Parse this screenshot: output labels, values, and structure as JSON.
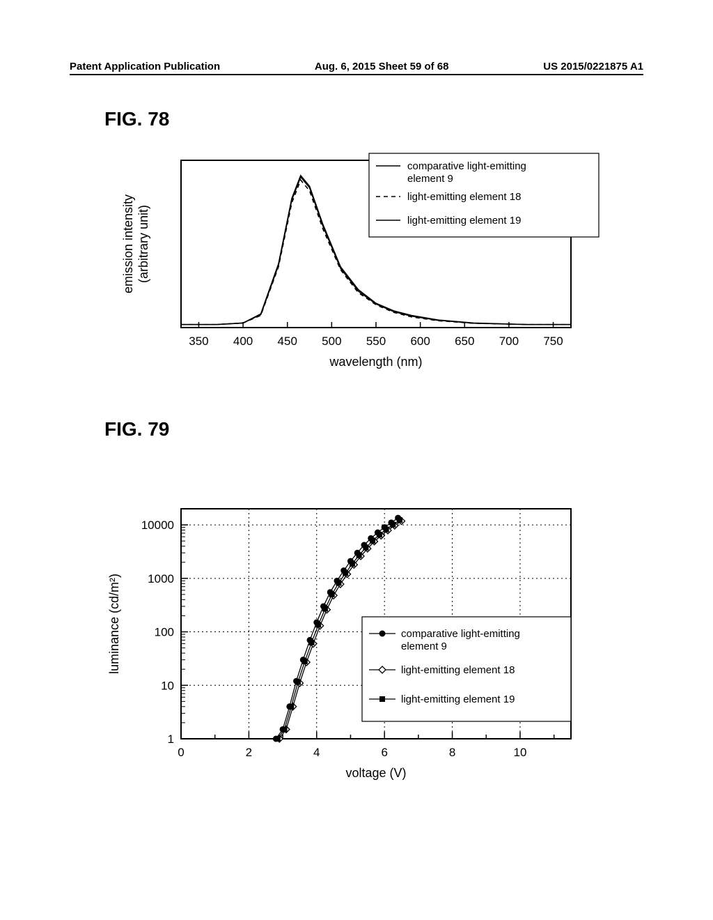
{
  "header": {
    "left": "Patent Application Publication",
    "center": "Aug. 6, 2015   Sheet 59 of 68",
    "right": "US 2015/0221875 A1"
  },
  "fig78": {
    "label": "FIG. 78",
    "type": "line",
    "xlabel": "wavelength (nm)",
    "ylabel_line1": "emission intensity",
    "ylabel_line2": "(arbitrary unit)",
    "xlim": [
      330,
      770
    ],
    "xticks": [
      350,
      400,
      450,
      500,
      550,
      600,
      650,
      700,
      750
    ],
    "ylim": [
      0,
      1.1
    ],
    "background_color": "#ffffff",
    "axis_color": "#000000",
    "legend_border_color": "#000000",
    "series": [
      {
        "name": "comparative light-emitting element  9",
        "color": "#000000",
        "dash": "solid",
        "data": [
          [
            330,
            0.02
          ],
          [
            370,
            0.02
          ],
          [
            400,
            0.03
          ],
          [
            420,
            0.09
          ],
          [
            440,
            0.42
          ],
          [
            455,
            0.85
          ],
          [
            465,
            1.0
          ],
          [
            475,
            0.93
          ],
          [
            490,
            0.68
          ],
          [
            510,
            0.4
          ],
          [
            530,
            0.25
          ],
          [
            550,
            0.16
          ],
          [
            570,
            0.11
          ],
          [
            590,
            0.08
          ],
          [
            620,
            0.05
          ],
          [
            660,
            0.03
          ],
          [
            720,
            0.02
          ],
          [
            770,
            0.02
          ]
        ]
      },
      {
        "name": "light-emitting element 18",
        "color": "#000000",
        "dash": "dashed",
        "data": [
          [
            330,
            0.02
          ],
          [
            370,
            0.02
          ],
          [
            400,
            0.03
          ],
          [
            420,
            0.08
          ],
          [
            440,
            0.4
          ],
          [
            455,
            0.82
          ],
          [
            465,
            0.97
          ],
          [
            475,
            0.9
          ],
          [
            490,
            0.65
          ],
          [
            510,
            0.38
          ],
          [
            530,
            0.23
          ],
          [
            550,
            0.15
          ],
          [
            570,
            0.1
          ],
          [
            590,
            0.07
          ],
          [
            620,
            0.045
          ],
          [
            660,
            0.028
          ],
          [
            720,
            0.02
          ],
          [
            770,
            0.02
          ]
        ]
      },
      {
        "name": "light-emitting element 19",
        "color": "#000000",
        "dash": "solid",
        "data": [
          [
            330,
            0.02
          ],
          [
            370,
            0.02
          ],
          [
            400,
            0.03
          ],
          [
            420,
            0.085
          ],
          [
            440,
            0.41
          ],
          [
            455,
            0.84
          ],
          [
            465,
            0.99
          ],
          [
            475,
            0.92
          ],
          [
            490,
            0.67
          ],
          [
            510,
            0.39
          ],
          [
            530,
            0.24
          ],
          [
            550,
            0.155
          ],
          [
            570,
            0.105
          ],
          [
            590,
            0.075
          ],
          [
            620,
            0.048
          ],
          [
            660,
            0.029
          ],
          [
            720,
            0.02
          ],
          [
            770,
            0.02
          ]
        ]
      }
    ]
  },
  "fig79": {
    "label": "FIG. 79",
    "type": "line-log",
    "xlabel": "voltage (V)",
    "ylabel": "luminance (cd/m²)",
    "xlim": [
      0,
      11.5
    ],
    "xticks": [
      0,
      2,
      4,
      6,
      8,
      10
    ],
    "ylim_log": [
      1,
      20000
    ],
    "yticks": [
      1,
      10,
      100,
      1000,
      10000
    ],
    "yticklabels": [
      "1",
      "10",
      "100",
      "1000",
      "10000"
    ],
    "background_color": "#ffffff",
    "axis_color": "#000000",
    "grid_color": "#000000",
    "grid_dash": "dotted",
    "legend_border_color": "#000000",
    "series": [
      {
        "name": "comparative light-emitting element 9",
        "marker": "filled-circle",
        "color": "#000000",
        "data": [
          [
            2.8,
            1.0
          ],
          [
            3.0,
            1.5
          ],
          [
            3.2,
            4
          ],
          [
            3.4,
            12
          ],
          [
            3.6,
            30
          ],
          [
            3.8,
            70
          ],
          [
            4.0,
            150
          ],
          [
            4.2,
            300
          ],
          [
            4.4,
            550
          ],
          [
            4.6,
            900
          ],
          [
            4.8,
            1400
          ],
          [
            5.0,
            2100
          ],
          [
            5.2,
            3000
          ],
          [
            5.4,
            4200
          ],
          [
            5.6,
            5600
          ],
          [
            5.8,
            7200
          ],
          [
            6.0,
            9000
          ],
          [
            6.2,
            11000
          ],
          [
            6.4,
            13500
          ]
        ]
      },
      {
        "name": "light-emitting element 18",
        "marker": "open-diamond",
        "color": "#000000",
        "data": [
          [
            2.9,
            1.0
          ],
          [
            3.1,
            1.5
          ],
          [
            3.3,
            4
          ],
          [
            3.5,
            11
          ],
          [
            3.7,
            27
          ],
          [
            3.9,
            60
          ],
          [
            4.1,
            130
          ],
          [
            4.3,
            260
          ],
          [
            4.5,
            480
          ],
          [
            4.7,
            780
          ],
          [
            4.9,
            1200
          ],
          [
            5.1,
            1800
          ],
          [
            5.3,
            2600
          ],
          [
            5.5,
            3600
          ],
          [
            5.7,
            4900
          ],
          [
            5.9,
            6300
          ],
          [
            6.1,
            7900
          ],
          [
            6.3,
            9700
          ],
          [
            6.5,
            11800
          ]
        ]
      },
      {
        "name": "light-emitting element 19",
        "marker": "filled-square",
        "color": "#000000",
        "data": [
          [
            2.85,
            1.0
          ],
          [
            3.05,
            1.5
          ],
          [
            3.25,
            4
          ],
          [
            3.45,
            11.5
          ],
          [
            3.65,
            28
          ],
          [
            3.85,
            63
          ],
          [
            4.05,
            135
          ],
          [
            4.25,
            270
          ],
          [
            4.45,
            500
          ],
          [
            4.65,
            820
          ],
          [
            4.85,
            1250
          ],
          [
            5.05,
            1870
          ],
          [
            5.25,
            2700
          ],
          [
            5.45,
            3750
          ],
          [
            5.65,
            5050
          ],
          [
            5.85,
            6550
          ],
          [
            6.05,
            8200
          ],
          [
            6.25,
            10100
          ],
          [
            6.45,
            12300
          ]
        ]
      }
    ]
  }
}
